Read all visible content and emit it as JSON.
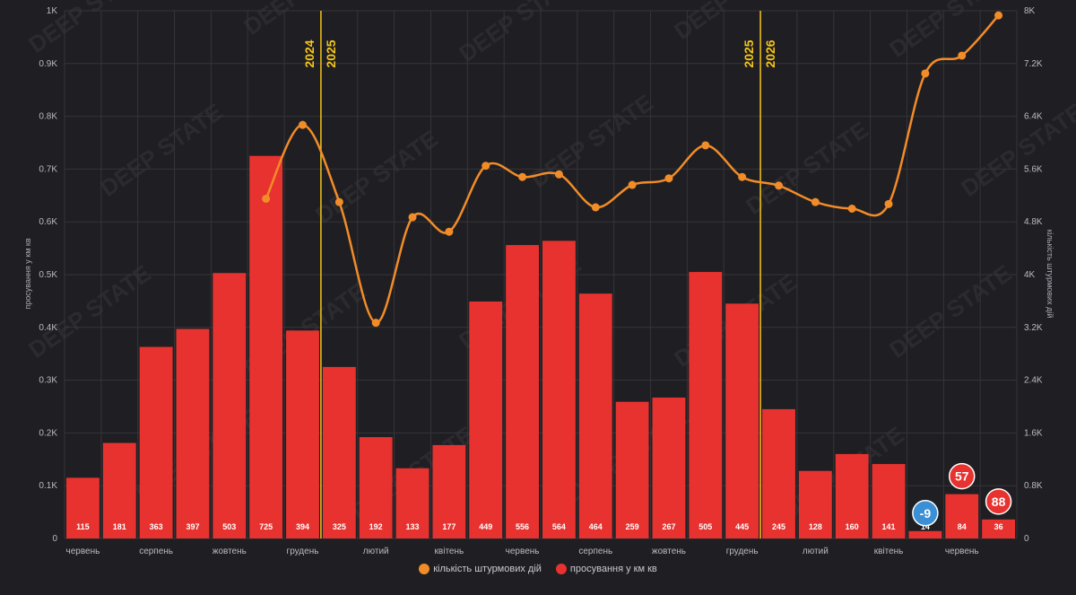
{
  "colors": {
    "background": "#1f1f23",
    "bar": "#e8322f",
    "line": "#f28c28",
    "year_divider": "#f5c518",
    "negative_badge": "#3b8fd4",
    "positive_badge": "#e8322f",
    "grid": "#34343a"
  },
  "watermark": "DEEP STATE",
  "chart_data": {
    "type": "bar",
    "categories": [
      "червень",
      "",
      "серпень",
      "",
      "жовтень",
      "",
      "грудень",
      "",
      "лютий",
      "",
      "квітень",
      "",
      "червень",
      "",
      "серпень",
      "",
      "жовтень",
      "",
      "грудень",
      "",
      "лютий",
      "",
      "квітень",
      "",
      "червень",
      ""
    ],
    "series": [
      {
        "name": "просування у км кв",
        "type": "bar",
        "axis": "left",
        "values": [
          115,
          181,
          363,
          397,
          503,
          725,
          394,
          325,
          192,
          133,
          177,
          449,
          556,
          564,
          464,
          259,
          267,
          505,
          445,
          245,
          128,
          160,
          141,
          14,
          84,
          36
        ],
        "labels": [
          "115",
          "181",
          "363",
          "397",
          "503",
          "725",
          "394",
          "325",
          "192",
          "133",
          "177",
          "449",
          "556",
          "564",
          "464",
          "259",
          "267",
          "505",
          "445",
          "245",
          "128",
          "160",
          "141",
          "14",
          "84",
          "36"
        ]
      },
      {
        "name": "кількість штурмових дій",
        "type": "line",
        "axis": "right",
        "values": [
          null,
          null,
          null,
          null,
          null,
          5150,
          6270,
          5100,
          3270,
          4870,
          4650,
          5650,
          5480,
          5520,
          5020,
          5360,
          5460,
          5960,
          5480,
          5350,
          5100,
          5000,
          5070,
          7050,
          7320,
          7930
        ]
      }
    ],
    "left_axis": {
      "label": "просування у км кв",
      "ylim": [
        0,
        1000
      ],
      "ticks": [
        "0",
        "0.1K",
        "0.2K",
        "0.3K",
        "0.4K",
        "0.5K",
        "0.6K",
        "0.7K",
        "0.8K",
        "0.9K",
        "1K"
      ]
    },
    "right_axis": {
      "label": "кількість штурмових дій",
      "ylim": [
        0,
        8000
      ],
      "ticks": [
        "0",
        "0.8K",
        "1.6K",
        "2.4K",
        "3.2K",
        "4K",
        "4.8K",
        "5.6K",
        "6.4K",
        "7.2K",
        "8K"
      ]
    },
    "year_dividers": [
      {
        "after_index": 6,
        "left": "2024",
        "right": "2025"
      },
      {
        "after_index": 18,
        "left": "2025",
        "right": "2026"
      }
    ],
    "badges": [
      {
        "index": 23,
        "value": "-9",
        "kind": "negative"
      },
      {
        "index": 24,
        "value": "57",
        "kind": "positive"
      },
      {
        "index": 25,
        "value": "88",
        "kind": "positive"
      }
    ],
    "legend": [
      {
        "label": "кількість штурмових дій",
        "color": "#f28c28"
      },
      {
        "label": "просування у км кв",
        "color": "#e8322f"
      }
    ],
    "legend_position": "bottom-center",
    "grid": true
  }
}
